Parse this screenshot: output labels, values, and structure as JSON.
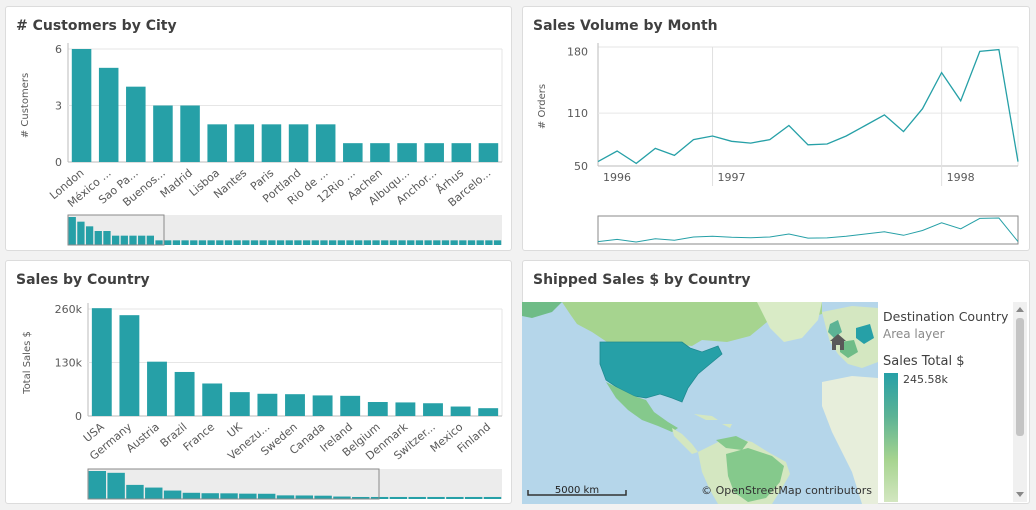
{
  "panels": {
    "city": {
      "title": "# Customers by City"
    },
    "month": {
      "title": "Sales Volume by Month"
    },
    "country": {
      "title": "Sales by Country"
    },
    "map": {
      "title": "Shipped Sales $ by Country"
    }
  },
  "colors": {
    "primary": "#26a0a7",
    "scrollbar_bg": "#ececec",
    "line": "#26a0a7"
  },
  "chart_data": [
    {
      "type": "bar",
      "title": "# Customers by City",
      "ylabel": "# Customers",
      "ylim": [
        0,
        6
      ],
      "yticks": [
        "6",
        "3",
        "0"
      ],
      "categories": [
        "London",
        "México ...",
        "Sao Pa...",
        "Buenos...",
        "Madrid",
        "Lisboa",
        "Nantes",
        "Paris",
        "Portland",
        "Rio de ...",
        "12Rio ...",
        "Aachen",
        "Albuqu...",
        "Anchor...",
        "Århus",
        "Barcelo..."
      ],
      "values": [
        6,
        5,
        4,
        3,
        3,
        2,
        2,
        2,
        2,
        2,
        1,
        1,
        1,
        1,
        1,
        1
      ],
      "grid": true
    },
    {
      "type": "line",
      "title": "Sales Volume by Month",
      "ylabel": "# Orders",
      "ylim": [
        50,
        185
      ],
      "yticks": [
        "180",
        "110",
        "50"
      ],
      "xlabels": [
        "1996",
        "1997",
        "1998"
      ],
      "x": [
        "1996-07",
        "1996-08",
        "1996-09",
        "1996-10",
        "1996-11",
        "1996-12",
        "1997-01",
        "1997-02",
        "1997-03",
        "1997-04",
        "1997-05",
        "1997-06",
        "1997-07",
        "1997-08",
        "1997-09",
        "1997-10",
        "1997-11",
        "1997-12",
        "1998-01",
        "1998-02",
        "1998-03",
        "1998-04",
        "1998-05"
      ],
      "values": [
        55,
        67,
        53,
        70,
        62,
        80,
        84,
        78,
        76,
        80,
        96,
        74,
        75,
        84,
        96,
        108,
        89,
        115,
        156,
        124,
        180,
        182,
        55
      ],
      "grid": true
    },
    {
      "type": "bar",
      "title": "Sales by Country",
      "ylabel": "Total Sales $",
      "ylim": [
        0,
        260000
      ],
      "yticks": [
        "260k",
        "130k",
        "0"
      ],
      "categories": [
        "USA",
        "Germany",
        "Austria",
        "Brazil",
        "France",
        "UK",
        "Venezu...",
        "Sweden",
        "Canada",
        "Ireland",
        "Belgium",
        "Denmark",
        "Switzer...",
        "Mexico",
        "Finland"
      ],
      "values": [
        262000,
        245000,
        132000,
        107000,
        79000,
        58000,
        54000,
        53000,
        50000,
        49000,
        34000,
        33000,
        31000,
        23000,
        19000
      ],
      "grid": true
    }
  ],
  "map": {
    "legend_title": "Destination Country",
    "legend_subtitle": "Area layer",
    "measure": "Sales Total $",
    "max_label": "245.58k",
    "scale_label": "5000 km",
    "attribution": "© OpenStreetMap contributors",
    "icons": {
      "home": "home-icon"
    }
  }
}
